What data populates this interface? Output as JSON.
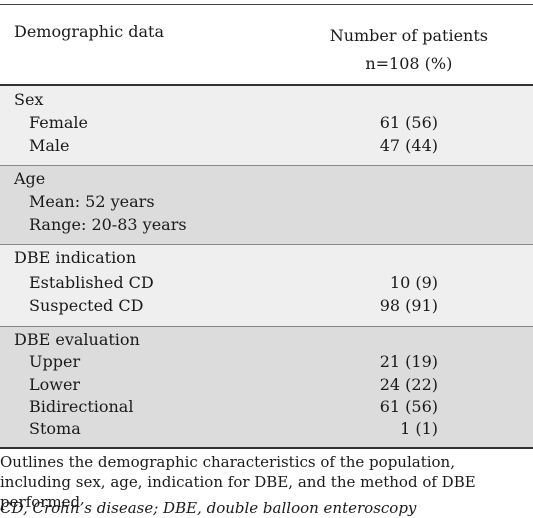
{
  "table": {
    "caption_fragment": "demographics",
    "header": {
      "col1": "Demographic data",
      "col2_line1": "Number of patients",
      "col2_line2": "n=108 (%)"
    },
    "sections": [
      {
        "title": "Sex",
        "rows": [
          {
            "label": "Female",
            "value": "61 (56)"
          },
          {
            "label": "Male",
            "value": "47 (44)"
          }
        ]
      },
      {
        "title": "Age",
        "rows": [
          {
            "label": "Mean: 52 years",
            "value": ""
          },
          {
            "label": "Range: 20-83 years",
            "value": ""
          }
        ]
      },
      {
        "title": "DBE indication",
        "rows": [
          {
            "label": "Established CD",
            "value": "10 (9)"
          },
          {
            "label": "Suspected CD",
            "value": "98 (91)"
          }
        ]
      },
      {
        "title": "DBE evaluation",
        "rows": [
          {
            "label": "Upper",
            "value": "21 (19)"
          },
          {
            "label": "Lower",
            "value": "24 (22)"
          },
          {
            "label": "Bidirectional",
            "value": "61 (56)"
          },
          {
            "label": "Stoma",
            "value": "1 (1)"
          }
        ]
      }
    ],
    "footnote": "Outlines the demographic characteristics of the population, including sex, age, indication for DBE, and the method of DBE performed",
    "abbreviations": "CD, Crohn’s disease; DBE, double balloon enteroscopy"
  }
}
